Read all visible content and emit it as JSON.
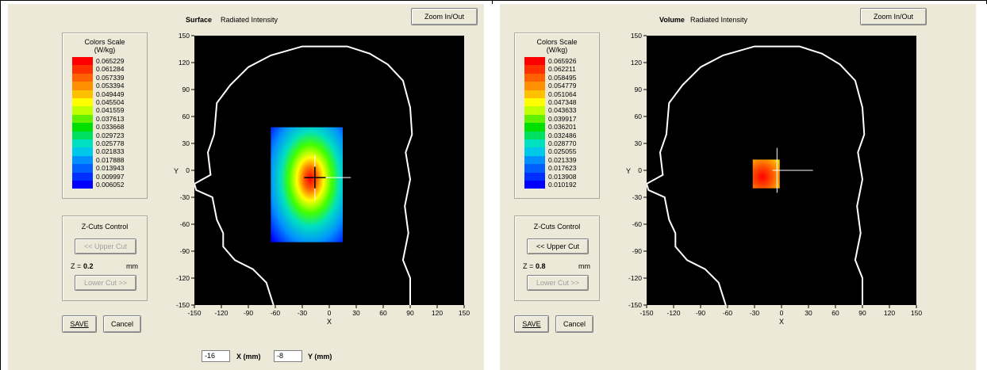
{
  "panels": [
    {
      "mode": "Surface",
      "subtitle": "Radiated Intensity",
      "zoom_label": "Zoom In/Out",
      "legend": {
        "title": "Colors Scale",
        "unit": "(W/kg)",
        "values": [
          "0.065229",
          "0.061284",
          "0.057339",
          "0.053394",
          "0.049449",
          "0.045504",
          "0.041559",
          "0.037613",
          "0.033668",
          "0.029723",
          "0.025778",
          "0.021833",
          "0.017888",
          "0.013943",
          "0.009997",
          "0.006052"
        ]
      },
      "zcuts": {
        "title": "Z-Cuts Control",
        "upper_label": "<< Upper Cut",
        "upper_enabled": false,
        "z_label": "Z =",
        "z_value": "0.2",
        "z_unit": "mm",
        "lower_label": "Lower Cut >>",
        "lower_enabled": false
      },
      "save_label": "SAVE",
      "cancel_label": "Cancel",
      "plot": {
        "ylabel": "Y",
        "xlabel": "X",
        "yticks": [
          "150",
          "120",
          "90",
          "60",
          "30",
          "0",
          "-30",
          "-60",
          "-90",
          "-120",
          "-150"
        ],
        "xticks": [
          "-150",
          "-120",
          "-90",
          "-60",
          "-30",
          "0",
          "30",
          "60",
          "90",
          "120",
          "150"
        ]
      },
      "coords": {
        "x_value": "-16",
        "x_label": "X (mm)",
        "y_value": "-8",
        "y_label": "Y (mm)"
      }
    },
    {
      "mode": "Volume",
      "subtitle": "Radiated Intensity",
      "zoom_label": "Zoom In/Out",
      "legend": {
        "title": "Colors Scale",
        "unit": "(W/kg)",
        "values": [
          "0.065926",
          "0.062211",
          "0.058495",
          "0.054779",
          "0.051064",
          "0.047348",
          "0.043633",
          "0.039917",
          "0.036201",
          "0.032486",
          "0.028770",
          "0.025055",
          "0.021339",
          "0.017623",
          "0.013908",
          "0.010192"
        ]
      },
      "zcuts": {
        "title": "Z-Cuts Control",
        "upper_label": "<< Upper Cut",
        "upper_enabled": true,
        "z_label": "Z =",
        "z_value": "0.8",
        "z_unit": "mm",
        "lower_label": "Lower Cut >>",
        "lower_enabled": false
      },
      "save_label": "SAVE",
      "cancel_label": "Cancel",
      "plot": {
        "ylabel": "Y",
        "xlabel": "X",
        "yticks": [
          "150",
          "120",
          "90",
          "60",
          "30",
          "0",
          "-30",
          "-60",
          "-90",
          "-120",
          "-150"
        ],
        "xticks": [
          "-150",
          "-120",
          "-90",
          "-60",
          "-30",
          "0",
          "30",
          "60",
          "90",
          "120",
          "150"
        ]
      }
    }
  ],
  "colors": {
    "scale": [
      "#ff0000",
      "#ff3000",
      "#ff6000",
      "#ff9000",
      "#ffc000",
      "#ffff00",
      "#c0ff00",
      "#60f000",
      "#00e000",
      "#00e060",
      "#00e0c0",
      "#00c8e8",
      "#0090ff",
      "#0060ff",
      "#0030ff",
      "#0000ff"
    ],
    "plot_bg": "#000000",
    "head_outline": "#ffffff"
  }
}
